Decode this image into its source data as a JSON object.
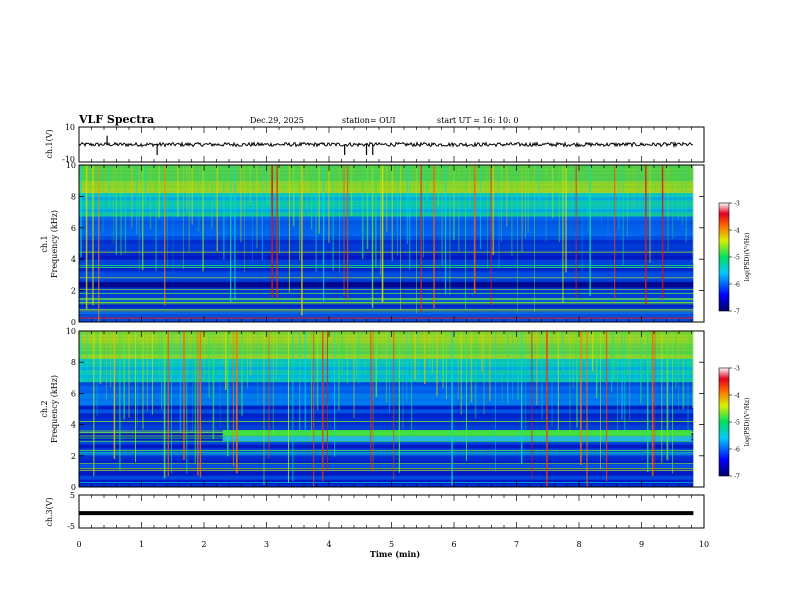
{
  "header": {
    "title": "VLF Spectra",
    "date": "Dec.29, 2025",
    "station": "station= OUI",
    "start_ut": "start  UT =   16: 10: 0"
  },
  "chart_data": [
    {
      "type": "line",
      "name_label": "ch.1(V)",
      "ylabel": "ch.1(V)",
      "ylim": [
        -10,
        10
      ],
      "yticks": [
        10,
        -10
      ],
      "x_range": [
        0,
        10
      ],
      "baseline": 0,
      "spikes_x": [
        0.45,
        1.25,
        4.25,
        4.6,
        4.7
      ]
    },
    {
      "type": "heatmap",
      "ylabel": "ch.1\nFrequency  (kHz)",
      "ylabel_lines": [
        "ch.1",
        "Frequency  (kHz)"
      ],
      "ylim": [
        0,
        10
      ],
      "yticks": [
        0,
        2,
        4,
        6,
        8,
        10
      ],
      "xlim": [
        0,
        10
      ],
      "colorbar": {
        "label": "log(PSD)(V²/Hz)",
        "range": [
          -7,
          -3
        ],
        "ticks": [
          -3,
          -4,
          -5,
          -6,
          -7
        ]
      },
      "strong_band_khz": [
        2.2,
        3.3
      ],
      "data_end_min": 9.83
    },
    {
      "type": "heatmap",
      "ylabel": "ch.2\nFrequency  (kHz)",
      "ylabel_lines": [
        "ch.2",
        "Frequency  (kHz)"
      ],
      "ylim": [
        0,
        10
      ],
      "yticks": [
        0,
        2,
        4,
        6,
        8,
        10
      ],
      "xlim": [
        0,
        10
      ],
      "colorbar": {
        "label": "log(PSD)(V²/Hz)",
        "range": [
          -7,
          -3
        ],
        "ticks": [
          -3,
          -4,
          -5,
          -6,
          -7
        ]
      },
      "emission_band": {
        "start_min": 2.3,
        "end_min": 9.8,
        "freq_khz": 3.5
      },
      "data_end_min": 9.83
    },
    {
      "type": "line",
      "ylabel": "ch.3(V)",
      "ylim": [
        -5,
        5
      ],
      "yticks": [
        5,
        0,
        -5
      ],
      "value": -0.5,
      "x_range": [
        0,
        10
      ]
    }
  ],
  "xaxis": {
    "label": "Time  (min)",
    "ticks": [
      "0",
      "1",
      "2",
      "3",
      "4",
      "5",
      "6",
      "7",
      "8",
      "9",
      "10"
    ],
    "range": [
      0,
      10
    ]
  },
  "colors": {
    "frame": "#000000",
    "waveform": "#000000",
    "spectrogram_low": "#0a1a8c",
    "spectrogram_high": "#e23a1c"
  }
}
